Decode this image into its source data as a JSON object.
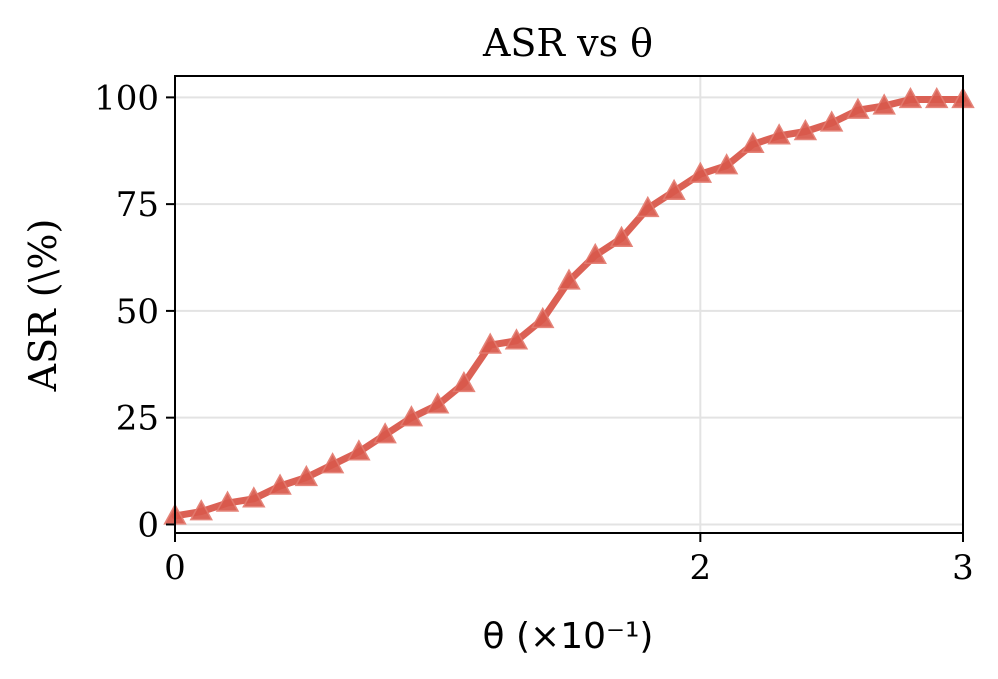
{
  "chart_data": {
    "type": "line",
    "title": "ASR vs θ",
    "xlabel": "θ (×10⁻¹)",
    "ylabel": "ASR (\\%)",
    "xlim": [
      0,
      3
    ],
    "ylim": [
      -2,
      105
    ],
    "x_ticks": [
      0,
      2,
      3
    ],
    "x_tick_labels": [
      "0",
      "2",
      "3"
    ],
    "y_ticks": [
      0,
      25,
      50,
      75,
      100
    ],
    "y_tick_labels": [
      "0",
      "25",
      "50",
      "75",
      "100"
    ],
    "grid": true,
    "marker": "triangle",
    "color": "#d9594c",
    "series": [
      {
        "x": [
          0.0,
          0.1,
          0.2,
          0.3,
          0.4,
          0.5,
          0.6,
          0.7,
          0.8,
          0.9,
          1.0,
          1.1,
          1.2,
          1.3,
          1.4,
          1.5,
          1.6,
          1.7,
          1.8,
          1.9,
          2.0,
          2.1,
          2.2,
          2.3,
          2.4,
          2.5,
          2.6,
          2.7,
          2.8,
          2.9,
          3.0
        ],
        "y": [
          2,
          3,
          5,
          6,
          9,
          11,
          14,
          17,
          21,
          25,
          28,
          33,
          42,
          43,
          48,
          57,
          63,
          67,
          74,
          78,
          82,
          84,
          89,
          91,
          92,
          94,
          97,
          98,
          99.5,
          99.5,
          99.5
        ]
      }
    ]
  }
}
